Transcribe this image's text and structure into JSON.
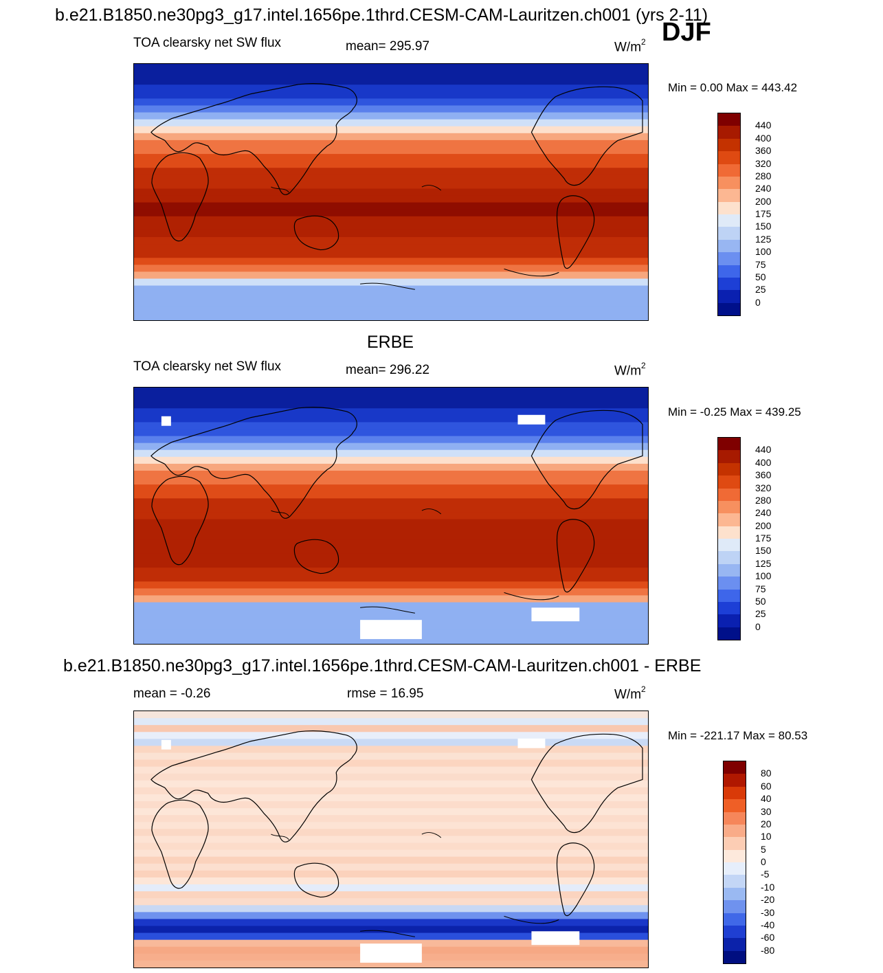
{
  "main_title": "b.e21.B1850.ne30pg3_g17.intel.1656pe.1thrd.CESM-CAM-Lauritzen.ch001 (yrs 2-11)",
  "season": "DJF",
  "panels": [
    {
      "id": "model",
      "header": "",
      "left_label": "TOA clearsky net SW flux",
      "center_label": "mean= 295.97",
      "units": "W/m",
      "units_sup": "2",
      "minmax": "Min =   0.00 Max = 443.42",
      "colorbar_labels": [
        "440",
        "400",
        "360",
        "320",
        "280",
        "240",
        "200",
        "175",
        "150",
        "125",
        "100",
        "75",
        "50",
        "25",
        "0"
      ],
      "colorbar_colors": [
        "#7f0000",
        "#a71a00",
        "#c43200",
        "#df4a12",
        "#f06a35",
        "#f7905f",
        "#fcb792",
        "#fde1cd",
        "#dfeaf8",
        "#bed3f5",
        "#98b6f2",
        "#6b8ff0",
        "#3e66ea",
        "#1d3fd6",
        "#0a20b0",
        "#00108a"
      ]
    },
    {
      "id": "obs",
      "header": "ERBE",
      "left_label": "TOA clearsky net SW flux",
      "center_label": "mean= 296.22",
      "units": "W/m",
      "units_sup": "2",
      "minmax": "Min =  -0.25 Max = 439.25",
      "colorbar_labels": [
        "440",
        "400",
        "360",
        "320",
        "280",
        "240",
        "200",
        "175",
        "150",
        "125",
        "100",
        "75",
        "50",
        "25",
        "0"
      ],
      "colorbar_colors": [
        "#7f0000",
        "#a71a00",
        "#c43200",
        "#df4a12",
        "#f06a35",
        "#f7905f",
        "#fcb792",
        "#fde1cd",
        "#dfeaf8",
        "#bed3f5",
        "#98b6f2",
        "#6b8ff0",
        "#3e66ea",
        "#1d3fd6",
        "#0a20b0",
        "#00108a"
      ]
    },
    {
      "id": "diff",
      "header": "b.e21.B1850.ne30pg3_g17.intel.1656pe.1thrd.CESM-CAM-Lauritzen.ch001 - ERBE",
      "left_label": "mean =  -0.26",
      "center_label": "rmse =  16.95",
      "units": "W/m",
      "units_sup": "2",
      "minmax": "Min = -221.17 Max =  80.53",
      "colorbar_labels": [
        "80",
        "60",
        "40",
        "30",
        "20",
        "10",
        "5",
        "0",
        "-5",
        "-10",
        "-20",
        "-30",
        "-40",
        "-60",
        "-80"
      ],
      "colorbar_colors": [
        "#7f0000",
        "#b01800",
        "#d93a08",
        "#ef5f26",
        "#f6865a",
        "#f9ab88",
        "#fccdb4",
        "#fde9dc",
        "#e6eefb",
        "#c3d6f6",
        "#9ab9f2",
        "#6f92ee",
        "#4068e8",
        "#1f3fd2",
        "#0b22aa",
        "#000e80"
      ]
    }
  ]
}
